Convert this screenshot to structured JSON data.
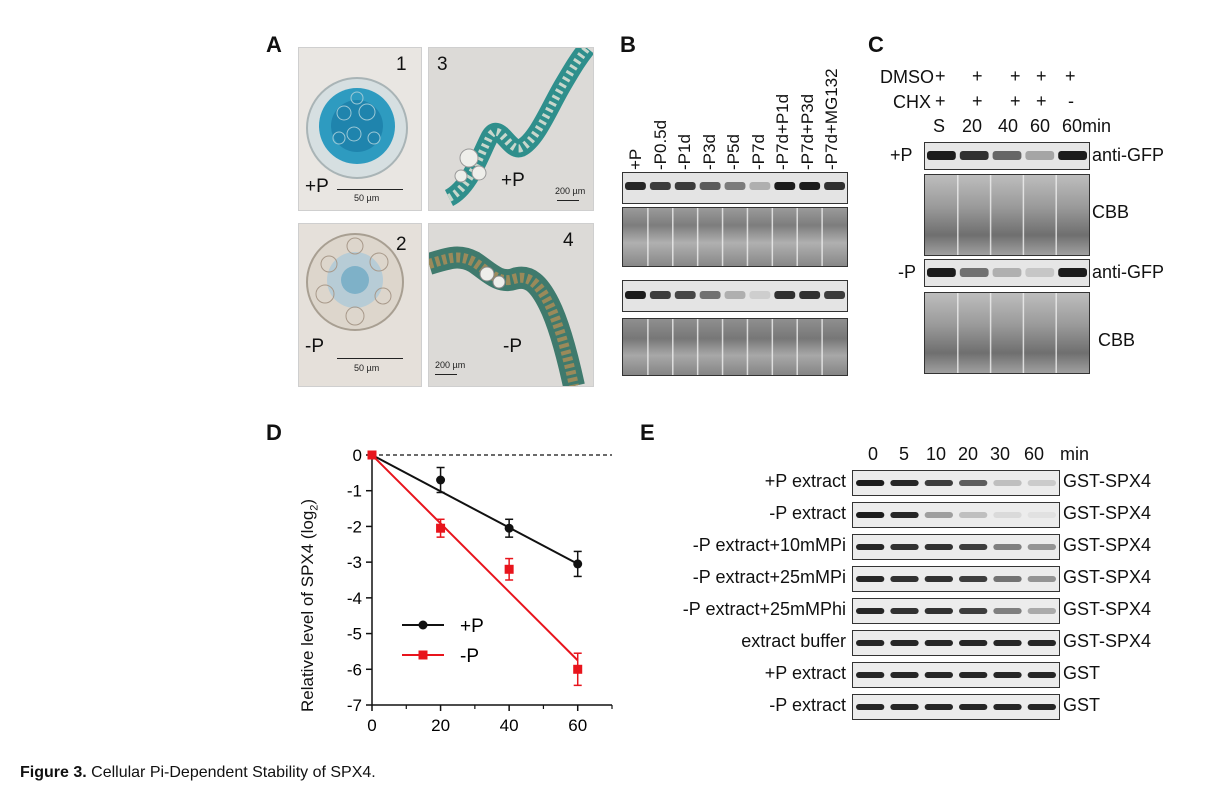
{
  "panels": {
    "A": {
      "letter": "A",
      "micrographs": [
        {
          "num": "1",
          "condition": "+P",
          "scale": "50 µm"
        },
        {
          "num": "3",
          "condition": "+P",
          "scale": "200 µm"
        },
        {
          "num": "2",
          "condition": "-P",
          "scale": "50 µm"
        },
        {
          "num": "4",
          "condition": "-P",
          "scale": "200 µm"
        }
      ]
    },
    "B": {
      "letter": "B",
      "lanes": [
        "+P",
        "-P0.5d",
        "-P1d",
        "-P3d",
        "-P5d",
        "-P7d",
        "-P7d+P1d",
        "-P7d+P3d",
        "-P7d+MG132"
      ]
    },
    "C": {
      "letter": "C",
      "dmso_label": "DMSO",
      "chx_label": "CHX",
      "dmso": [
        "+",
        "+",
        "+",
        "+",
        "+"
      ],
      "chx": [
        "+",
        "+",
        "+",
        "+",
        "-"
      ],
      "times": [
        "S",
        "20",
        "40",
        "60",
        "60min"
      ],
      "rows": [
        {
          "cond": "+P",
          "label": "anti-GFP"
        },
        {
          "cond": "",
          "label": "CBB"
        },
        {
          "cond": "-P",
          "label": "anti-GFP"
        },
        {
          "cond": "",
          "label": "CBB"
        }
      ]
    },
    "D": {
      "letter": "D"
    },
    "E": {
      "letter": "E",
      "times": [
        "0",
        "5",
        "10",
        "20",
        "30",
        "60",
        "min"
      ],
      "rows": [
        {
          "left": "+P extract",
          "right": "GST-SPX4"
        },
        {
          "left": "-P extract",
          "right": "GST-SPX4"
        },
        {
          "left": "-P extract+10mMPi",
          "right": "GST-SPX4"
        },
        {
          "left": "-P extract+25mMPi",
          "right": "GST-SPX4"
        },
        {
          "left": "-P extract+25mMPhi",
          "right": "GST-SPX4"
        },
        {
          "left": "extract buffer",
          "right": "GST-SPX4"
        },
        {
          "left": "+P extract",
          "right": "GST"
        },
        {
          "left": "-P extract",
          "right": "GST"
        }
      ]
    }
  },
  "caption": {
    "bold": "Figure 3.",
    "text": " Cellular Pi-Dependent Stability of SPX4."
  },
  "chart_data": {
    "type": "line",
    "x": [
      0,
      20,
      40,
      60
    ],
    "xlim": [
      0,
      70
    ],
    "xticks": [
      "0",
      "20",
      "40",
      "60"
    ],
    "ylim": [
      -7,
      0
    ],
    "yticks": [
      "0",
      "-1",
      "-2",
      "-3",
      "-4",
      "-5",
      "-6",
      "-7"
    ],
    "ylabel": "Relative level of SPX4 (log2)",
    "xlabel": "",
    "reference_line": 0,
    "legend_position": "bottom-left",
    "series": [
      {
        "name": "+P",
        "color": "#111111",
        "marker": "circle",
        "values": [
          0,
          -0.7,
          -2.05,
          -3.05
        ],
        "errors": [
          0,
          0.35,
          0.25,
          0.35
        ],
        "fit": [
          0,
          -3.05
        ]
      },
      {
        "name": "-P",
        "color": "#e8141c",
        "marker": "square",
        "values": [
          0,
          -2.05,
          -3.2,
          -6.0
        ],
        "errors": [
          0,
          0.25,
          0.3,
          0.45
        ],
        "fit": [
          0,
          -5.75
        ]
      }
    ]
  }
}
